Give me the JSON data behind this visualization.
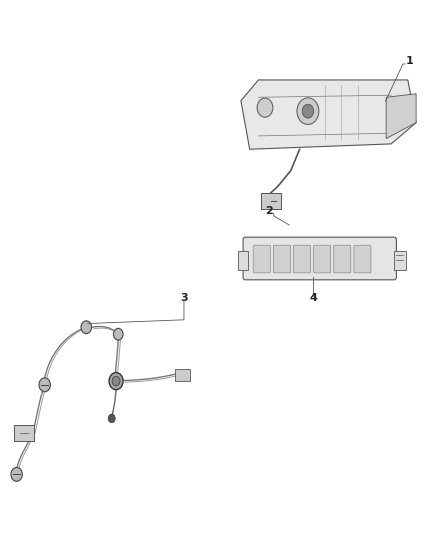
{
  "bg_color": "#ffffff",
  "line_color": "#555555",
  "dark_color": "#333333",
  "label_color": "#222222",
  "cable_color": "#888888",
  "component_color": "#aaaaaa",
  "fig_w": 4.38,
  "fig_h": 5.33
}
